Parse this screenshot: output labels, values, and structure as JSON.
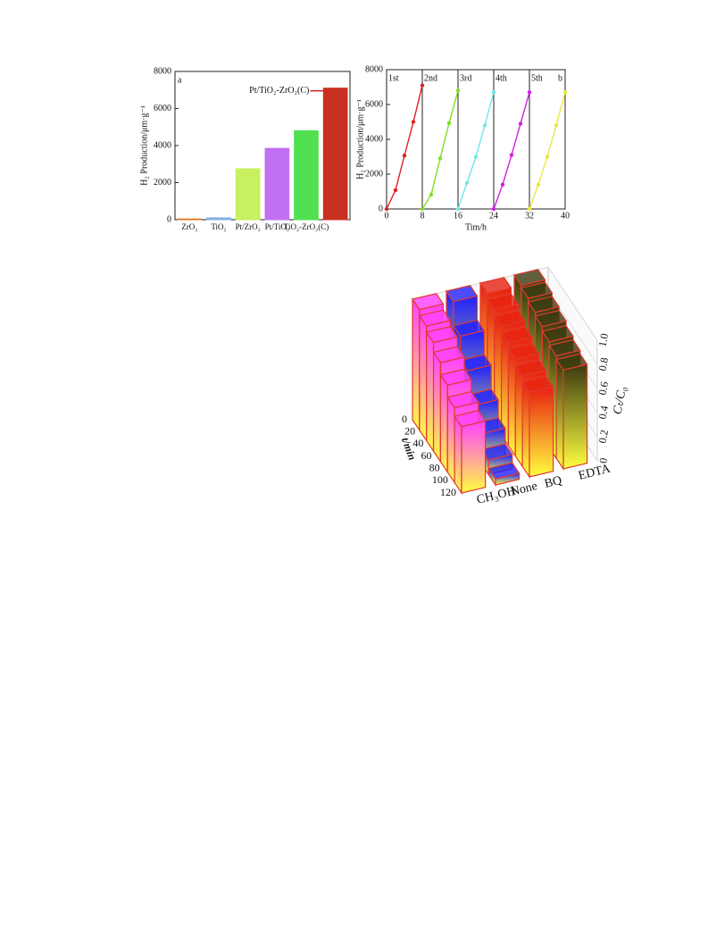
{
  "chart_data": [
    {
      "type": "bar",
      "panel": "a",
      "ylabel": "H₂ Production/μm·g⁻¹",
      "categories": [
        "ZrO₂",
        "TiO₂",
        "Pt/ZrO₂",
        "Pt/TiO₂",
        "TiO₂-ZrO₂(C)",
        null
      ],
      "values": [
        40,
        100,
        2750,
        3850,
        4800,
        7100
      ],
      "colors": [
        "#e07020",
        "#80b0e0",
        "#c8f060",
        "#c070f0",
        "#50e050",
        "#c83020"
      ],
      "annotation": "Pt/TiO₂-ZrO₂(C)",
      "ylim": [
        0,
        8000
      ],
      "yticks": [
        0,
        2000,
        4000,
        6000,
        8000
      ]
    },
    {
      "type": "line",
      "panel": "b",
      "xlabel": "Tim/h",
      "ylabel": "H₂ Production/μm·g⁻¹",
      "x": [
        0,
        2,
        4,
        6,
        8,
        10,
        12,
        14,
        16,
        18,
        20,
        22,
        24,
        26,
        28,
        30,
        32,
        34,
        36,
        38,
        40
      ],
      "series": [
        {
          "name": "1st",
          "color": "#e02020",
          "values": [
            0,
            1080,
            3070,
            5000,
            7100,
            null,
            null,
            null,
            null,
            null,
            null,
            null,
            null,
            null,
            null,
            null,
            null,
            null,
            null,
            null,
            null
          ]
        },
        {
          "name": "2nd",
          "color": "#80e020",
          "values": [
            null,
            null,
            null,
            null,
            0,
            830,
            2900,
            4930,
            6800,
            null,
            null,
            null,
            null,
            null,
            null,
            null,
            null,
            null,
            null,
            null,
            null
          ]
        },
        {
          "name": "3rd",
          "color": "#70e8e8",
          "values": [
            null,
            null,
            null,
            null,
            null,
            null,
            null,
            null,
            0,
            1500,
            3000,
            4800,
            6700,
            null,
            null,
            null,
            null,
            null,
            null,
            null,
            null
          ]
        },
        {
          "name": "4th",
          "color": "#d020e0",
          "values": [
            null,
            null,
            null,
            null,
            null,
            null,
            null,
            null,
            null,
            null,
            null,
            null,
            0,
            1400,
            3100,
            4900,
            6700,
            null,
            null,
            null,
            null
          ]
        },
        {
          "name": "5th",
          "color": "#e8e840",
          "values": [
            null,
            null,
            null,
            null,
            null,
            null,
            null,
            null,
            null,
            null,
            null,
            null,
            null,
            null,
            null,
            null,
            0,
            1400,
            3000,
            4800,
            6700
          ]
        }
      ],
      "xlim": [
        0,
        40
      ],
      "xticks": [
        0,
        8,
        16,
        24,
        32,
        40
      ],
      "ylim": [
        0,
        8000
      ],
      "yticks": [
        0,
        2000,
        4000,
        6000,
        8000
      ],
      "grid": "x"
    },
    {
      "type": "bar3d",
      "xlabel": "t/min",
      "ylabel": "Cₜ/C₀",
      "x": [
        0,
        20,
        40,
        60,
        80,
        100,
        120
      ],
      "series": [
        {
          "name": "CH₃OH",
          "color": "#ff40ff",
          "values": [
            1.0,
            0.95,
            0.9,
            0.82,
            0.72,
            0.62,
            0.55
          ]
        },
        {
          "name": "None",
          "color": "#2020ff",
          "values": [
            1.0,
            0.8,
            0.6,
            0.4,
            0.25,
            0.12,
            0.05
          ]
        },
        {
          "name": "BQ",
          "color": "#e82010",
          "values": [
            1.0,
            0.95,
            0.9,
            0.85,
            0.8,
            0.75,
            0.7
          ]
        },
        {
          "name": "EDTA",
          "color": "#3a3a10",
          "values": [
            1.0,
            0.98,
            0.95,
            0.92,
            0.88,
            0.85,
            0.82
          ]
        }
      ],
      "xlim": [
        0,
        120
      ],
      "xticks": [
        0,
        20,
        40,
        60,
        80,
        100,
        120
      ],
      "ylim": [
        0,
        1
      ],
      "yticks": [
        0,
        0.2,
        0.4,
        0.6,
        0.8,
        {
          "value": 1,
          "label": "1.0"
        }
      ]
    }
  ]
}
